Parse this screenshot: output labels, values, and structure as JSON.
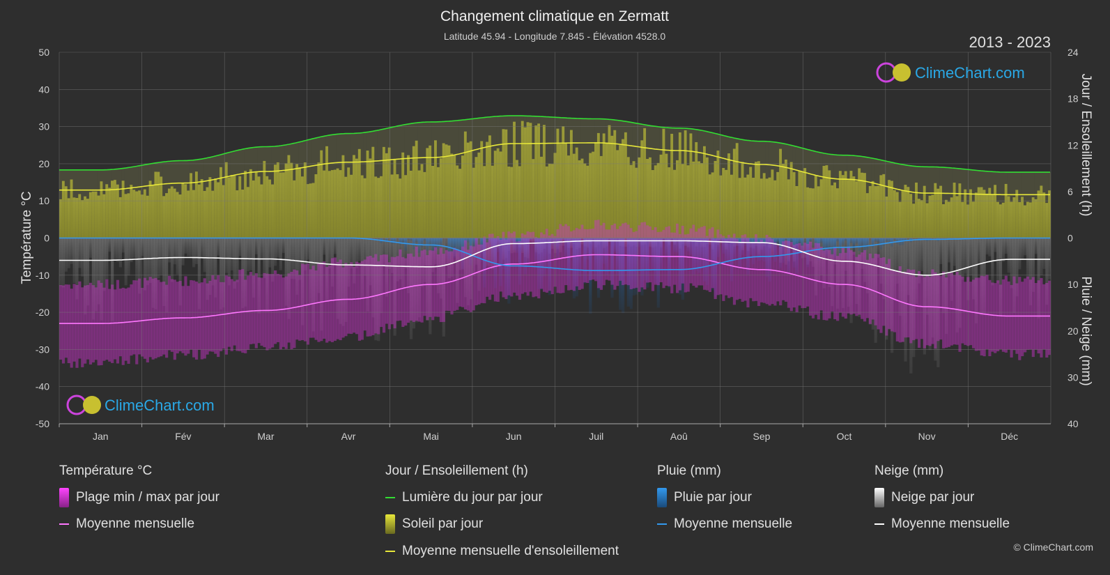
{
  "header": {
    "title": "Changement climatique en Zermatt",
    "subtitle": "Latitude 45.94 - Longitude 7.845 - Élévation 4528.0",
    "period": "2013 - 2023"
  },
  "brand": {
    "logo_text": "ClimeChart.com",
    "copyright": "© ClimeChart.com"
  },
  "colors": {
    "background": "#2e2e2e",
    "daylight": "#33dd33",
    "sunshine_fill": "#a0a030",
    "sunshine_mean": "#e8e83a",
    "temp_range": "#cc33cc",
    "temp_mean": "#ff77ff",
    "rain": "#2f7fd0",
    "rain_mean": "#3399ee",
    "snow": "#9a9a9a",
    "snow_mean": "#ffffff",
    "brand_blue": "#2aa8e6"
  },
  "chart_data": {
    "type": "line",
    "months": [
      "Jan",
      "Fév",
      "Mar",
      "Avr",
      "Mai",
      "Jun",
      "Juil",
      "Aoû",
      "Sep",
      "Oct",
      "Nov",
      "Déc"
    ],
    "y_left": {
      "label": "Température °C",
      "range": [
        -50,
        50
      ],
      "ticks": [
        "50",
        "40",
        "30",
        "20",
        "10",
        "0",
        "-10",
        "-20",
        "-30",
        "-40",
        "-50"
      ]
    },
    "y_right_top": {
      "label": "Jour / Ensoleillement (h)",
      "range": [
        0,
        24
      ],
      "ticks": [
        "24",
        "18",
        "12",
        "6",
        "0"
      ]
    },
    "y_right_bottom": {
      "label": "Pluie / Neige (mm)",
      "range": [
        0,
        40
      ],
      "ticks": [
        "0",
        "10",
        "20",
        "30",
        "40"
      ]
    },
    "grid": true,
    "series": [
      {
        "name": "Lumière du jour par jour",
        "unit": "h",
        "values": [
          8.8,
          10.0,
          11.8,
          13.5,
          15.0,
          15.8,
          15.4,
          14.2,
          12.5,
          10.7,
          9.2,
          8.5
        ]
      },
      {
        "name": "Moyenne mensuelle d'ensoleillement",
        "unit": "h",
        "values": [
          6.2,
          7.1,
          8.6,
          9.8,
          10.4,
          12.2,
          12.3,
          11.3,
          9.5,
          7.6,
          5.8,
          5.6
        ]
      },
      {
        "name": "Moyenne mensuelle (température)",
        "unit": "°C",
        "values": [
          -23.0,
          -21.5,
          -19.5,
          -16.5,
          -12.5,
          -7.0,
          -4.5,
          -5.0,
          -8.5,
          -12.5,
          -18.5,
          -21.0
        ]
      },
      {
        "name": "Moyenne mensuelle (pluie)",
        "unit": "mm",
        "values": [
          0.0,
          0.0,
          0.0,
          0.0,
          1.5,
          6.0,
          7.0,
          6.8,
          4.0,
          2.0,
          0.3,
          0.0
        ]
      },
      {
        "name": "Moyenne mensuelle (neige)",
        "unit": "mm",
        "values": [
          4.8,
          4.2,
          4.5,
          5.8,
          6.2,
          1.2,
          0.6,
          0.6,
          1.0,
          5.0,
          8.0,
          4.6
        ]
      }
    ],
    "temp_daily_range_approx": {
      "min": [
        -32,
        -30,
        -28,
        -25,
        -20,
        -14,
        -11,
        -12,
        -16,
        -20,
        -27,
        -30
      ],
      "max": [
        -14,
        -13,
        -11,
        -8,
        -5,
        -1,
        2,
        1,
        -2,
        -5,
        -11,
        -13
      ]
    }
  },
  "legend": {
    "temperature": {
      "heading": "Température °C",
      "items": [
        "Plage min / max par jour",
        "Moyenne mensuelle"
      ]
    },
    "sunshine": {
      "heading": "Jour / Ensoleillement (h)",
      "items": [
        "Lumière du jour par jour",
        "Soleil par jour",
        "Moyenne mensuelle d'ensoleillement"
      ]
    },
    "rain": {
      "heading": "Pluie (mm)",
      "items": [
        "Pluie par jour",
        "Moyenne mensuelle"
      ]
    },
    "snow": {
      "heading": "Neige (mm)",
      "items": [
        "Neige par jour",
        "Moyenne mensuelle"
      ]
    }
  }
}
